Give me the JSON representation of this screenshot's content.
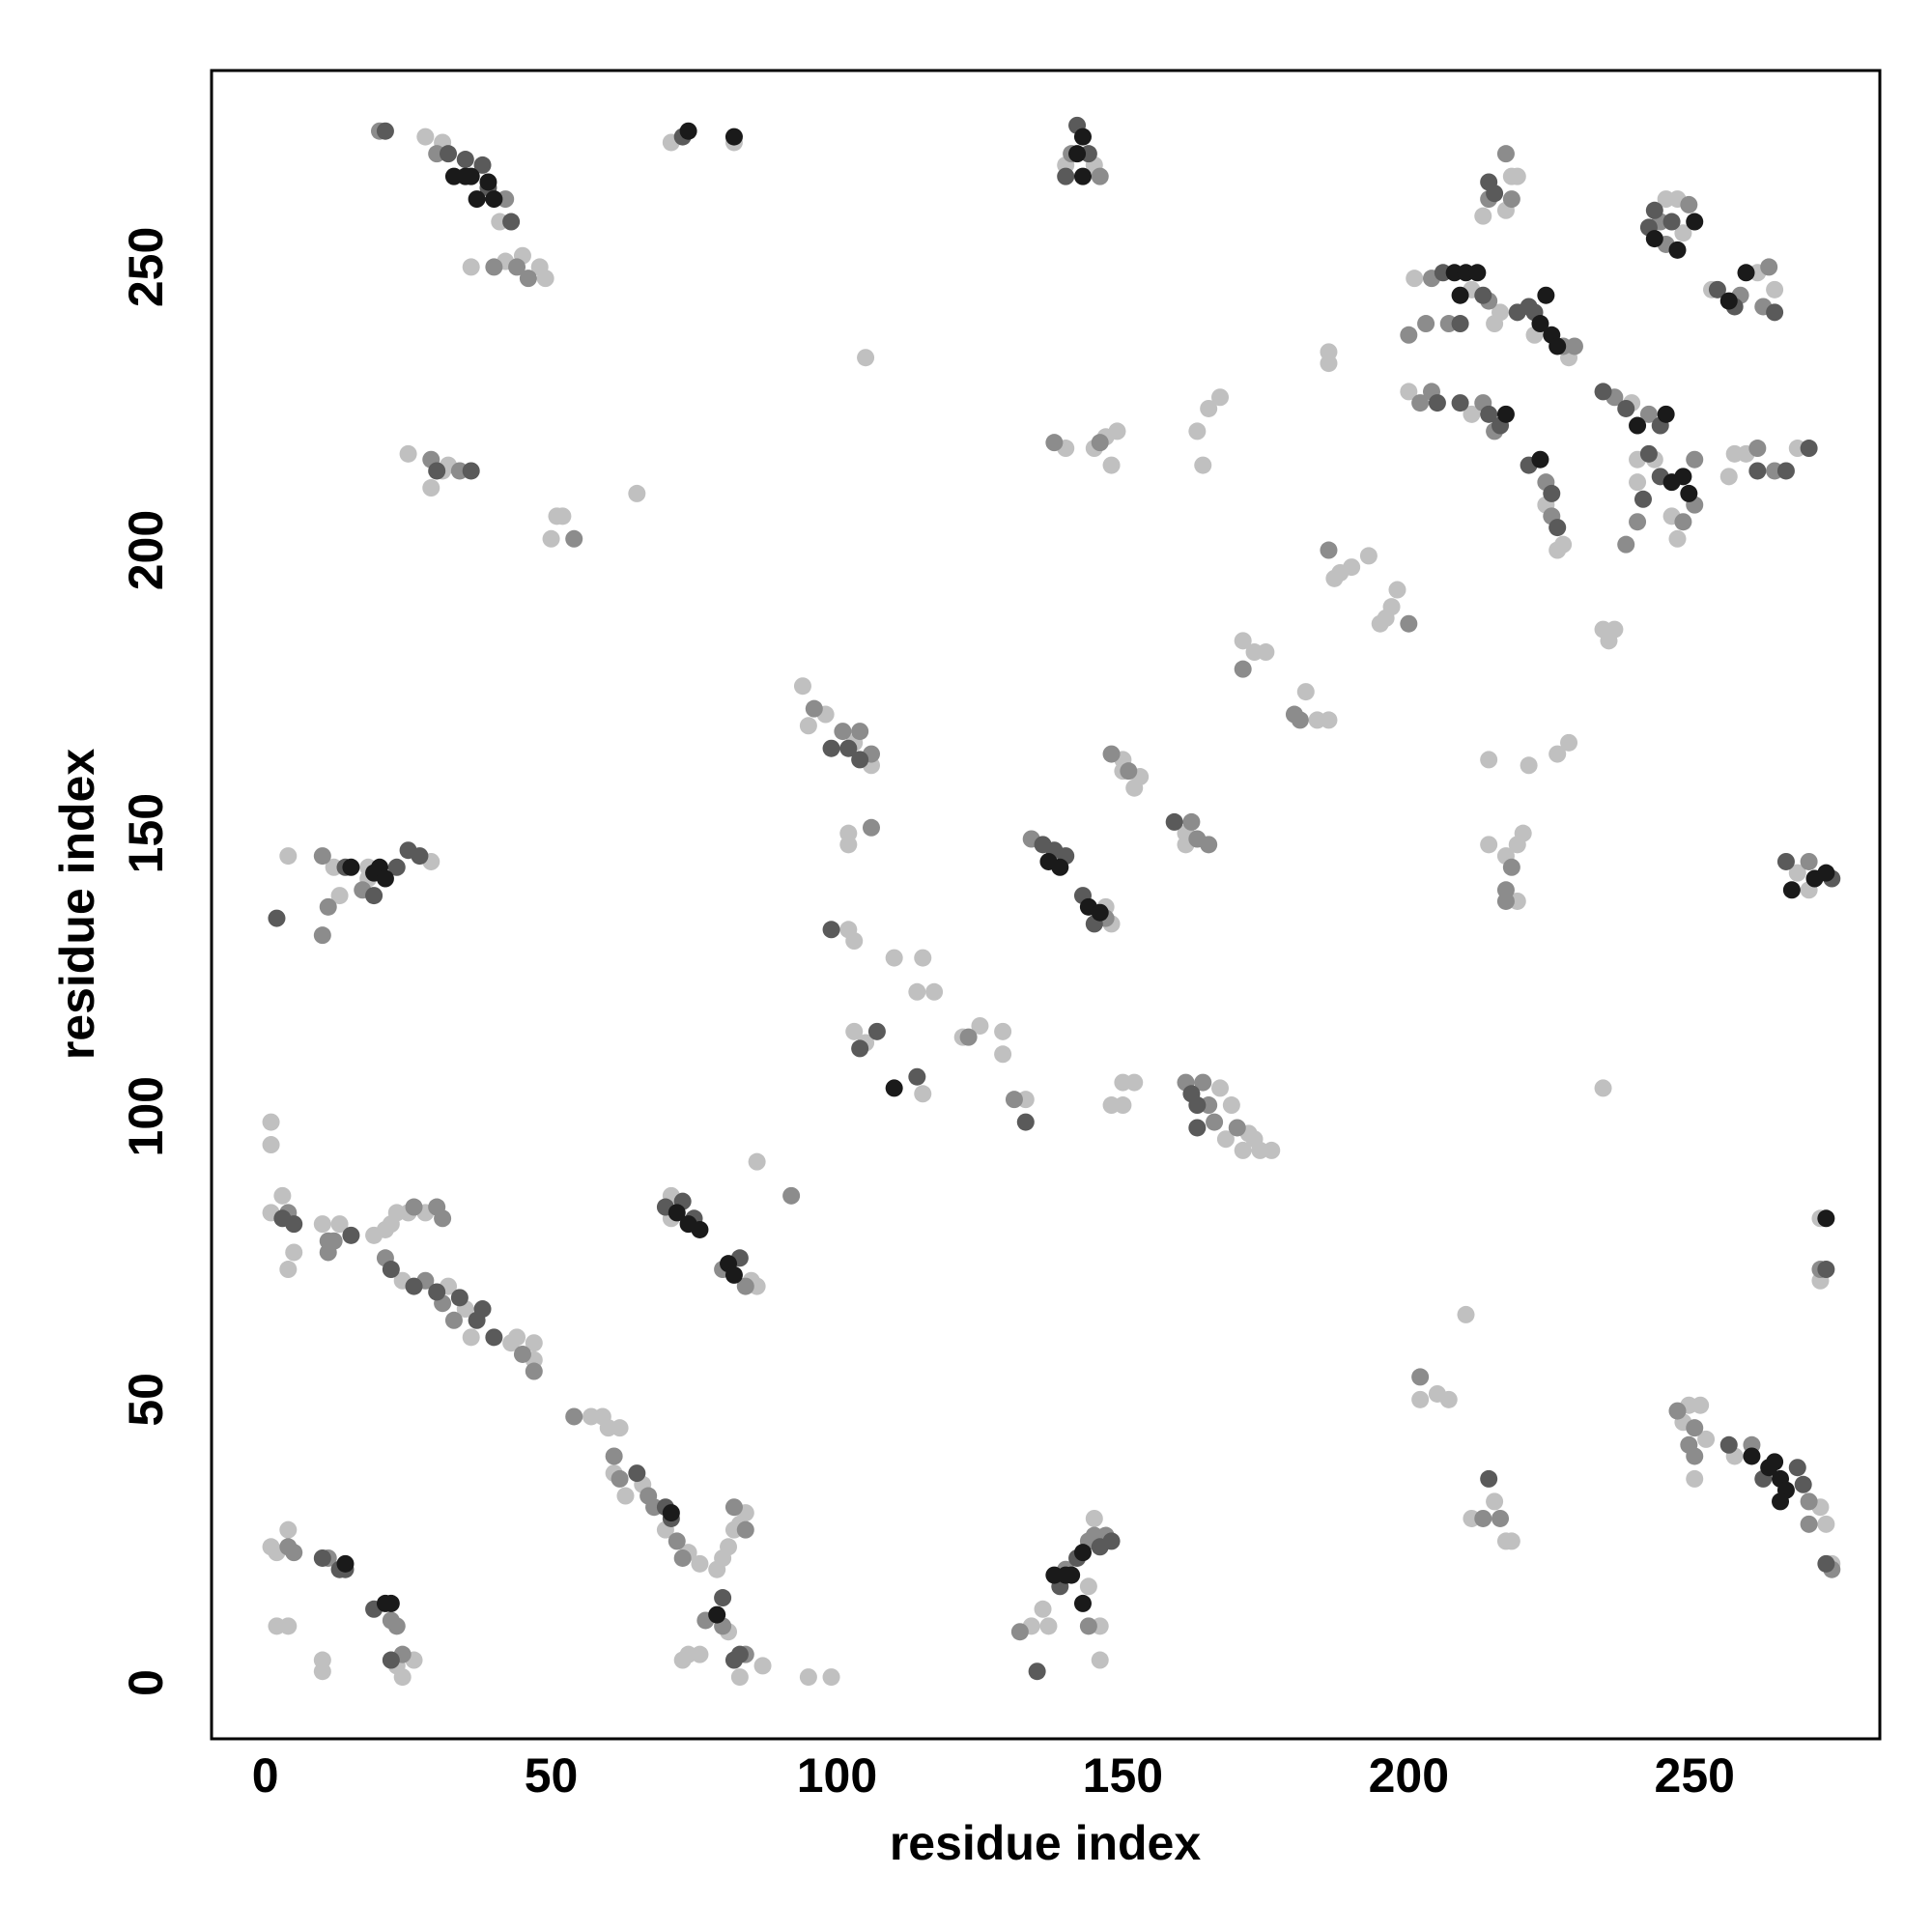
{
  "chart_data": {
    "type": "scatter",
    "xlabel": "residue index",
    "ylabel": "residue index",
    "xlim": [
      -9.4,
      282.4
    ],
    "ylim": [
      -9.9,
      284.7
    ],
    "xticks": [
      0,
      50,
      100,
      150,
      200,
      250
    ],
    "yticks": [
      0,
      50,
      100,
      150,
      200,
      250
    ],
    "series": [
      {
        "color": "#c0c0c0",
        "x": [
          28,
          31,
          41,
          36,
          42,
          45,
          48,
          49,
          71,
          82,
          140,
          145,
          218,
          219,
          217,
          213,
          245,
          247,
          248,
          261,
          264,
          253,
          201,
          211,
          216,
          215,
          228,
          222,
          186,
          186,
          200,
          211,
          224,
          227,
          226,
          239,
          246,
          243,
          240,
          240,
          247,
          257,
          259,
          268,
          256,
          234,
          236,
          235,
          150,
          153,
          150,
          152,
          161,
          161,
          171,
          173,
          175,
          182,
          184,
          186,
          188,
          190,
          193,
          196,
          197,
          198,
          195,
          187,
          163,
          165,
          167,
          164,
          140,
          145,
          147,
          149,
          148,
          105,
          25,
          31,
          32,
          29,
          51,
          52,
          50,
          65,
          94,
          98,
          103,
          106,
          95,
          102,
          102,
          214,
          221,
          226,
          228,
          214,
          217,
          219,
          220,
          219,
          148,
          147,
          268,
          270,
          4,
          12,
          13,
          18,
          29,
          18,
          102,
          103,
          110,
          114,
          115,
          117,
          103,
          105,
          115,
          122,
          125,
          129,
          129,
          133,
          148,
          150,
          150,
          152,
          167,
          169,
          171,
          173,
          174,
          176,
          168,
          172,
          234,
          1,
          1,
          1,
          3,
          4,
          5,
          10,
          13,
          19,
          21,
          22,
          23,
          25,
          28,
          24,
          32,
          35,
          36,
          43,
          44,
          47,
          47,
          71,
          85,
          86,
          71,
          86,
          57,
          59,
          60,
          62,
          61,
          63,
          66,
          70,
          74,
          76,
          79,
          80,
          81,
          82,
          83,
          84,
          73,
          74,
          76,
          81,
          83,
          87,
          95,
          99,
          1,
          2,
          4,
          2,
          4,
          10,
          10,
          23,
          24,
          26,
          134,
          136,
          137,
          145,
          144,
          146,
          146,
          210,
          202,
          205,
          207,
          211,
          215,
          217,
          218,
          248,
          249,
          251,
          252,
          250,
          257,
          272,
          273,
          274,
          272,
          272
        ],
        "y": [
          273,
          272,
          258,
          250,
          251,
          252,
          250,
          248,
          272,
          272,
          268,
          268,
          266,
          266,
          260,
          259,
          262,
          262,
          256,
          249,
          246,
          246,
          248,
          246,
          242,
          240,
          234,
          238,
          233,
          235,
          228,
          224,
          208,
          201,
          200,
          226,
          206,
          216,
          216,
          212,
          202,
          217,
          217,
          218,
          213,
          186,
          186,
          184,
          163,
          160,
          161,
          158,
          150,
          148,
          184,
          182,
          182,
          175,
          170,
          170,
          196,
          197,
          199,
          188,
          190,
          193,
          187,
          195,
          221,
          225,
          227,
          215,
          218,
          218,
          220,
          221,
          215,
          234,
          217,
          214,
          215,
          211,
          206,
          206,
          202,
          210,
          176,
          171,
          166,
          162,
          169,
          150,
          148,
          163,
          162,
          164,
          166,
          148,
          146,
          148,
          150,
          138,
          134,
          137,
          143,
          140,
          146,
          144,
          139,
          142,
          145,
          144,
          133,
          131,
          128,
          122,
          128,
          122,
          115,
          113,
          104,
          114,
          116,
          115,
          111,
          103,
          102,
          102,
          106,
          106,
          105,
          102,
          94,
          96,
          94,
          94,
          96,
          97,
          105,
          99,
          95,
          83,
          86,
          73,
          76,
          81,
          81,
          79,
          80,
          81,
          83,
          83,
          83,
          71,
          70,
          66,
          61,
          60,
          61,
          60,
          57,
          86,
          71,
          70,
          82,
          92,
          47,
          47,
          45,
          45,
          37,
          33,
          35,
          27,
          23,
          21,
          20,
          22,
          24,
          27,
          28,
          30,
          4,
          5,
          5,
          9,
          1,
          3,
          1,
          1,
          24,
          23,
          27,
          10,
          10,
          2,
          4,
          3,
          1,
          4,
          10,
          13,
          10,
          29,
          17,
          10,
          4,
          65,
          50,
          51,
          50,
          29,
          32,
          25,
          25,
          46,
          49,
          49,
          43,
          36,
          40,
          31,
          28,
          21,
          82,
          71
        ]
      },
      {
        "color": "#8c8c8c",
        "x": [
          20,
          30,
          42,
          40,
          44,
          46,
          141,
          146,
          217,
          214,
          218,
          249,
          245,
          244,
          258,
          263,
          262,
          204,
          214,
          203,
          207,
          200,
          227,
          229,
          202,
          204,
          213,
          215,
          224,
          225,
          236,
          242,
          250,
          248,
          240,
          238,
          250,
          261,
          264,
          148,
          151,
          162,
          163,
          165,
          171,
          180,
          181,
          186,
          200,
          138,
          146,
          29,
          34,
          54,
          96,
          101,
          104,
          106,
          106,
          218,
          217,
          217,
          134,
          147,
          270,
          10,
          11,
          10,
          17,
          123,
          131,
          161,
          164,
          165,
          166,
          170,
          4,
          11,
          11,
          12,
          26,
          30,
          31,
          21,
          28,
          31,
          33,
          45,
          47,
          84,
          80,
          92,
          54,
          61,
          62,
          67,
          68,
          72,
          73,
          82,
          84,
          77,
          80,
          84,
          4,
          5,
          11,
          22,
          23,
          24,
          132,
          140,
          144,
          145,
          147,
          144,
          202,
          213,
          216,
          247,
          250,
          249,
          250,
          260,
          270,
          270,
          274,
          272
        ],
        "y": [
          274,
          270,
          262,
          250,
          250,
          248,
          270,
          266,
          270,
          262,
          262,
          261,
          254,
          258,
          245,
          250,
          243,
          248,
          244,
          240,
          240,
          238,
          236,
          236,
          226,
          228,
          226,
          221,
          212,
          206,
          227,
          224,
          208,
          205,
          205,
          201,
          216,
          218,
          214,
          164,
          161,
          152,
          149,
          148,
          179,
          171,
          170,
          200,
          187,
          219,
          219,
          216,
          214,
          202,
          172,
          168,
          168,
          164,
          151,
          144,
          140,
          138,
          149,
          135,
          145,
          132,
          137,
          146,
          140,
          114,
          103,
          106,
          106,
          102,
          99,
          98,
          83,
          78,
          76,
          78,
          84,
          84,
          82,
          75,
          71,
          67,
          64,
          58,
          55,
          70,
          73,
          86,
          47,
          40,
          36,
          33,
          31,
          25,
          22,
          31,
          27,
          11,
          10,
          5,
          24,
          23,
          22,
          11,
          10,
          5,
          9,
          20,
          25,
          26,
          26,
          10,
          54,
          29,
          29,
          48,
          45,
          42,
          40,
          42,
          32,
          28,
          20,
          73
        ]
      },
      {
        "color": "#5a5a5a",
        "x": [
          21,
          32,
          35,
          38,
          39,
          43,
          73,
          142,
          144,
          140,
          214,
          215,
          243,
          246,
          242,
          254,
          257,
          264,
          206,
          213,
          219,
          209,
          222,
          221,
          205,
          209,
          214,
          216,
          221,
          225,
          226,
          234,
          238,
          244,
          242,
          244,
          241,
          266,
          270,
          261,
          159,
          30,
          36,
          99,
          102,
          104,
          136,
          138,
          140,
          143,
          145,
          266,
          274,
          2,
          14,
          23,
          25,
          27,
          19,
          99,
          104,
          107,
          114,
          133,
          162,
          163,
          163,
          3,
          5,
          15,
          22,
          26,
          30,
          34,
          37,
          38,
          40,
          70,
          73,
          75,
          83,
          65,
          70,
          71,
          80,
          82,
          83,
          10,
          14,
          13,
          19,
          22,
          135,
          139,
          142,
          146,
          148,
          214,
          256,
          262,
          268,
          269,
          273,
          273
        ],
        "y": [
          274,
          270,
          269,
          268,
          264,
          258,
          273,
          275,
          270,
          266,
          265,
          263,
          260,
          258,
          257,
          246,
          243,
          242,
          249,
          245,
          242,
          240,
          242,
          243,
          226,
          226,
          224,
          222,
          215,
          210,
          204,
          228,
          225,
          222,
          217,
          213,
          209,
          214,
          218,
          214,
          152,
          214,
          214,
          165,
          165,
          163,
          148,
          147,
          146,
          139,
          134,
          145,
          142,
          135,
          144,
          144,
          147,
          146,
          139,
          133,
          112,
          115,
          107,
          99,
          104,
          102,
          98,
          82,
          81,
          79,
          73,
          70,
          69,
          68,
          64,
          66,
          61,
          84,
          85,
          82,
          75,
          37,
          31,
          29,
          15,
          4,
          5,
          22,
          20,
          20,
          13,
          4,
          2,
          17,
          22,
          24,
          25,
          36,
          42,
          36,
          38,
          35,
          21,
          73
        ]
      },
      {
        "color": "#1a1a1a",
        "x": [
          33,
          36,
          35,
          39,
          40,
          37,
          74,
          82,
          143,
          142,
          143,
          250,
          243,
          247,
          259,
          256,
          208,
          210,
          209,
          212,
          223,
          224,
          225,
          226,
          217,
          223,
          240,
          245,
          246,
          248,
          249,
          139,
          137,
          144,
          146,
          267,
          271,
          273,
          15,
          19,
          20,
          21,
          110,
          72,
          74,
          76,
          81,
          82,
          71,
          79,
          14,
          21,
          22,
          138,
          141,
          143,
          143,
          140,
          260,
          263,
          264,
          265,
          266,
          265,
          273
        ],
        "y": [
          266,
          266,
          266,
          265,
          262,
          262,
          274,
          273,
          273,
          270,
          266,
          258,
          255,
          253,
          249,
          244,
          249,
          249,
          245,
          249,
          240,
          245,
          238,
          236,
          224,
          216,
          222,
          224,
          212,
          213,
          210,
          144,
          145,
          137,
          136,
          140,
          142,
          143,
          144,
          143,
          144,
          142,
          105,
          83,
          81,
          80,
          74,
          72,
          30,
          12,
          21,
          14,
          14,
          19,
          19,
          23,
          14,
          19,
          40,
          38,
          39,
          36,
          34,
          32,
          82
        ]
      }
    ]
  }
}
